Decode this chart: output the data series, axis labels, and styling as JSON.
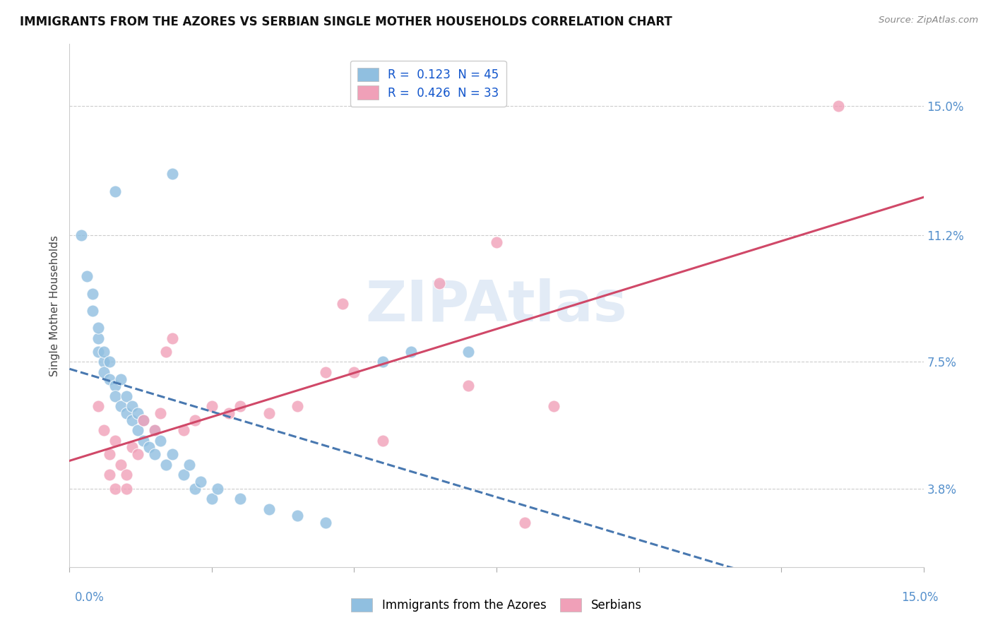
{
  "title": "IMMIGRANTS FROM THE AZORES VS SERBIAN SINGLE MOTHER HOUSEHOLDS CORRELATION CHART",
  "source": "Source: ZipAtlas.com",
  "ylabel": "Single Mother Households",
  "ytick_labels": [
    "3.8%",
    "7.5%",
    "11.2%",
    "15.0%"
  ],
  "ytick_values": [
    0.038,
    0.075,
    0.112,
    0.15
  ],
  "xlim": [
    0.0,
    0.15
  ],
  "ylim": [
    0.015,
    0.168
  ],
  "legend_entries": [
    {
      "label_r": "R =  0.123",
      "label_n": "  N = 45",
      "color": "#a8c8e8"
    },
    {
      "label_r": "R =  0.426",
      "label_n": "  N = 33",
      "color": "#f4a0b5"
    }
  ],
  "blue_scatter": [
    [
      0.002,
      0.112
    ],
    [
      0.003,
      0.1
    ],
    [
      0.004,
      0.09
    ],
    [
      0.004,
      0.095
    ],
    [
      0.005,
      0.082
    ],
    [
      0.005,
      0.078
    ],
    [
      0.005,
      0.085
    ],
    [
      0.006,
      0.075
    ],
    [
      0.006,
      0.078
    ],
    [
      0.006,
      0.072
    ],
    [
      0.007,
      0.07
    ],
    [
      0.007,
      0.075
    ],
    [
      0.008,
      0.068
    ],
    [
      0.008,
      0.065
    ],
    [
      0.009,
      0.062
    ],
    [
      0.009,
      0.07
    ],
    [
      0.01,
      0.06
    ],
    [
      0.01,
      0.065
    ],
    [
      0.011,
      0.058
    ],
    [
      0.011,
      0.062
    ],
    [
      0.012,
      0.055
    ],
    [
      0.012,
      0.06
    ],
    [
      0.013,
      0.058
    ],
    [
      0.013,
      0.052
    ],
    [
      0.014,
      0.05
    ],
    [
      0.015,
      0.055
    ],
    [
      0.015,
      0.048
    ],
    [
      0.016,
      0.052
    ],
    [
      0.017,
      0.045
    ],
    [
      0.018,
      0.048
    ],
    [
      0.02,
      0.042
    ],
    [
      0.021,
      0.045
    ],
    [
      0.022,
      0.038
    ],
    [
      0.023,
      0.04
    ],
    [
      0.025,
      0.035
    ],
    [
      0.026,
      0.038
    ],
    [
      0.03,
      0.035
    ],
    [
      0.035,
      0.032
    ],
    [
      0.04,
      0.03
    ],
    [
      0.045,
      0.028
    ],
    [
      0.018,
      0.13
    ],
    [
      0.008,
      0.125
    ],
    [
      0.055,
      0.075
    ],
    [
      0.06,
      0.078
    ],
    [
      0.07,
      0.078
    ]
  ],
  "pink_scatter": [
    [
      0.005,
      0.062
    ],
    [
      0.006,
      0.055
    ],
    [
      0.007,
      0.048
    ],
    [
      0.007,
      0.042
    ],
    [
      0.008,
      0.052
    ],
    [
      0.008,
      0.038
    ],
    [
      0.009,
      0.045
    ],
    [
      0.01,
      0.042
    ],
    [
      0.01,
      0.038
    ],
    [
      0.011,
      0.05
    ],
    [
      0.012,
      0.048
    ],
    [
      0.013,
      0.058
    ],
    [
      0.015,
      0.055
    ],
    [
      0.016,
      0.06
    ],
    [
      0.017,
      0.078
    ],
    [
      0.018,
      0.082
    ],
    [
      0.02,
      0.055
    ],
    [
      0.022,
      0.058
    ],
    [
      0.025,
      0.062
    ],
    [
      0.028,
      0.06
    ],
    [
      0.03,
      0.062
    ],
    [
      0.035,
      0.06
    ],
    [
      0.04,
      0.062
    ],
    [
      0.045,
      0.072
    ],
    [
      0.048,
      0.092
    ],
    [
      0.05,
      0.072
    ],
    [
      0.055,
      0.052
    ],
    [
      0.065,
      0.098
    ],
    [
      0.07,
      0.068
    ],
    [
      0.075,
      0.11
    ],
    [
      0.08,
      0.028
    ],
    [
      0.085,
      0.062
    ],
    [
      0.135,
      0.15
    ]
  ],
  "blue_color": "#90bfe0",
  "pink_color": "#f0a0b8",
  "blue_line_color": "#4878b0",
  "pink_line_color": "#d04868",
  "background_color": "#ffffff",
  "title_fontsize": 12,
  "axis_label_fontsize": 11,
  "watermark_color": "#d0dff0",
  "watermark_alpha": 0.6
}
